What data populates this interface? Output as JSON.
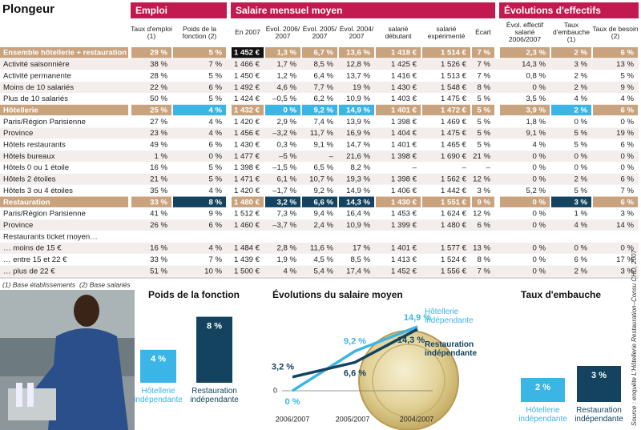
{
  "title": "Plongeur",
  "groups": [
    "Emploi",
    "Salaire mensuel moyen",
    "Évolutions d'effectifs"
  ],
  "columns": [
    "Taux d'emploi (1)",
    "Poids de la fonction (2)",
    "En 2007",
    "Évol. 2006/ 2007",
    "Évol. 2005/ 2007",
    "Évol. 2004/ 2007",
    "salarié débutant",
    "salarié expérimenté",
    "Écart",
    "Évol. effectif salarié 2006/2007",
    "Taux d'embauche (1)",
    "Taux de besoin (2)"
  ],
  "rows": [
    {
      "label": "Ensemble hôtellerie + restauration",
      "cells": [
        "29 %",
        "5 %",
        "1 452 €",
        "1,3 %",
        "6,7 %",
        "13,6 %",
        "1 418 €",
        "1 514 €",
        "7 %",
        "2,3 %",
        "2 %",
        "6 %"
      ]
    },
    {
      "label": "Activité saisonnière",
      "cells": [
        "38 %",
        "7 %",
        "1 466 €",
        "1,7 %",
        "8,5 %",
        "12,8 %",
        "1 425 €",
        "1 526 €",
        "7 %",
        "14,3 %",
        "3 %",
        "13 %"
      ]
    },
    {
      "label": "Activité permanente",
      "cells": [
        "28 %",
        "5 %",
        "1 450 €",
        "1,2 %",
        "6,4 %",
        "13,7 %",
        "1 416 €",
        "1 513 €",
        "7 %",
        "0,8 %",
        "2 %",
        "5 %"
      ]
    },
    {
      "label": "Moins de 10 salariés",
      "cells": [
        "22 %",
        "6 %",
        "1 492 €",
        "4,6 %",
        "7,7 %",
        "19 %",
        "1 430 €",
        "1 548 €",
        "8 %",
        "0 %",
        "2 %",
        "9 %"
      ]
    },
    {
      "label": "Plus de 10 salariés",
      "cells": [
        "50 %",
        "5 %",
        "1 424 €",
        "–0,5 %",
        "6,2 %",
        "10,9 %",
        "1 403 €",
        "1 475 €",
        "5 %",
        "3,5 %",
        "4 %",
        "4 %"
      ]
    },
    {
      "label": "Hôtellerie",
      "cells": [
        "25 %",
        "4 %",
        "1 432 €",
        "0 %",
        "9,2 %",
        "14,9 %",
        "1 401 €",
        "1 472 €",
        "5 %",
        "3,9 %",
        "2 %",
        "6 %"
      ]
    },
    {
      "label": "Paris/Région Parisienne",
      "cells": [
        "27 %",
        "4 %",
        "1 420 €",
        "2,9 %",
        "7,4 %",
        "13,9 %",
        "1 398 €",
        "1 469 €",
        "5 %",
        "1,8 %",
        "0 %",
        "0 %"
      ]
    },
    {
      "label": "Province",
      "cells": [
        "23 %",
        "4 %",
        "1 456 €",
        "–3,2 %",
        "11,7 %",
        "16,9 %",
        "1 404 €",
        "1 475 €",
        "5 %",
        "9,1 %",
        "5 %",
        "19 %"
      ]
    },
    {
      "label": "Hôtels restaurants",
      "cells": [
        "49 %",
        "6 %",
        "1 430 €",
        "0,3 %",
        "9,1 %",
        "14,7 %",
        "1 401 €",
        "1 465 €",
        "5 %",
        "4 %",
        "5 %",
        "6 %"
      ]
    },
    {
      "label": "Hôtels bureaux",
      "cells": [
        "1 %",
        "0 %",
        "1 477 €",
        "–5 %",
        "–",
        "21,6 %",
        "1 398 €",
        "1 690 €",
        "21 %",
        "0 %",
        "0 %",
        "0 %"
      ]
    },
    {
      "label": "Hôtels 0 ou 1 étoile",
      "cells": [
        "16 %",
        "5 %",
        "1 398 €",
        "–1,5 %",
        "6,5 %",
        "8,2 %",
        "–",
        "–",
        "–",
        "0 %",
        "0 %",
        "0 %"
      ]
    },
    {
      "label": "Hôtels 2 étoiles",
      "cells": [
        "21 %",
        "5 %",
        "1 471 €",
        "6,1 %",
        "10,7 %",
        "19,3 %",
        "1 398 €",
        "1 562 €",
        "12 %",
        "0 %",
        "2 %",
        "6 %"
      ]
    },
    {
      "label": "Hôtels 3 ou 4 étoiles",
      "cells": [
        "35 %",
        "4 %",
        "1 420 €",
        "–1,7 %",
        "9,2 %",
        "14,9 %",
        "1 406 €",
        "1 442 €",
        "3 %",
        "5,2 %",
        "5 %",
        "7 %"
      ]
    },
    {
      "label": "Restauration",
      "cells": [
        "33 %",
        "8 %",
        "1 480 €",
        "3,2 %",
        "6,6 %",
        "14,3 %",
        "1 430 €",
        "1 551 €",
        "9 %",
        "0 %",
        "3 %",
        "6 %"
      ]
    },
    {
      "label": "Paris/Région Parisienne",
      "cells": [
        "41 %",
        "9 %",
        "1 512 €",
        "7,3 %",
        "9,4 %",
        "16,4 %",
        "1 453 €",
        "1 624 €",
        "12 %",
        "0 %",
        "1 %",
        "3 %"
      ]
    },
    {
      "label": "Province",
      "cells": [
        "26 %",
        "6 %",
        "1 460 €",
        "–3,7 %",
        "2,4 %",
        "10,9 %",
        "1 399 €",
        "1 480 €",
        "6 %",
        "0 %",
        "4 %",
        "14 %"
      ]
    },
    {
      "label": "Restaurants ticket moyen…"
    },
    {
      "label": "… moins de 15 €",
      "cells": [
        "16 %",
        "4 %",
        "1 484 €",
        "2,8 %",
        "11,6 %",
        "17 %",
        "1 401 €",
        "1 577 €",
        "13 %",
        "0 %",
        "0 %",
        "0 %"
      ]
    },
    {
      "label": "… entre 15 et 22 €",
      "cells": [
        "33 %",
        "7 %",
        "1 439 €",
        "1,9 %",
        "4,5 %",
        "8,5 %",
        "1 413 €",
        "1 524 €",
        "8 %",
        "0 %",
        "6 %",
        "17 %"
      ]
    },
    {
      "label": "… plus de 22 €",
      "cells": [
        "51 %",
        "10 %",
        "1 500 €",
        "4 %",
        "5,4 %",
        "17,4 %",
        "1 452 €",
        "1 556 €",
        "7 %",
        "0 %",
        "2 %",
        "3 %"
      ]
    }
  ],
  "footnotes": [
    "(1) Base établissements",
    "(2) Base salariés"
  ],
  "source": "Source : enquête L'Hôtellerie Restauration–Consu CHD, 2007",
  "charts": [
    {
      "type": "bar",
      "title": "Poids de la fonction",
      "categories": [
        "Hôtellerie indépendante",
        "Restauration indépendante"
      ],
      "values": [
        4,
        8
      ],
      "value_labels": [
        "4 %",
        "8 %"
      ],
      "colors": [
        "#3bb5e6",
        "#13435e"
      ]
    },
    {
      "type": "line",
      "title": "Évolutions du salaire moyen",
      "categories": [
        "2006/2007",
        "2005/2007",
        "2004/2007"
      ],
      "ylim": [
        0,
        16
      ],
      "yticks": [
        0
      ],
      "series": [
        {
          "name": "Hôtellerie indépendante",
          "color": "#3bb5e6",
          "values": [
            0,
            9.2,
            14.9
          ],
          "value_labels": [
            "0 %",
            "9,2 %",
            "14,9 %"
          ]
        },
        {
          "name": "Restauration indépendante",
          "color": "#13435e",
          "values": [
            3.2,
            6.6,
            14.3
          ],
          "value_labels": [
            "3,2 %",
            "6,6 %",
            "14,3 %"
          ]
        }
      ]
    },
    {
      "type": "bar",
      "title": "Taux d'embauche",
      "categories": [
        "Hôtellerie indépendante",
        "Restauration indépendante"
      ],
      "values": [
        2,
        3
      ],
      "value_labels": [
        "2 %",
        "3 %"
      ],
      "colors": [
        "#3bb5e6",
        "#13435e"
      ]
    }
  ]
}
